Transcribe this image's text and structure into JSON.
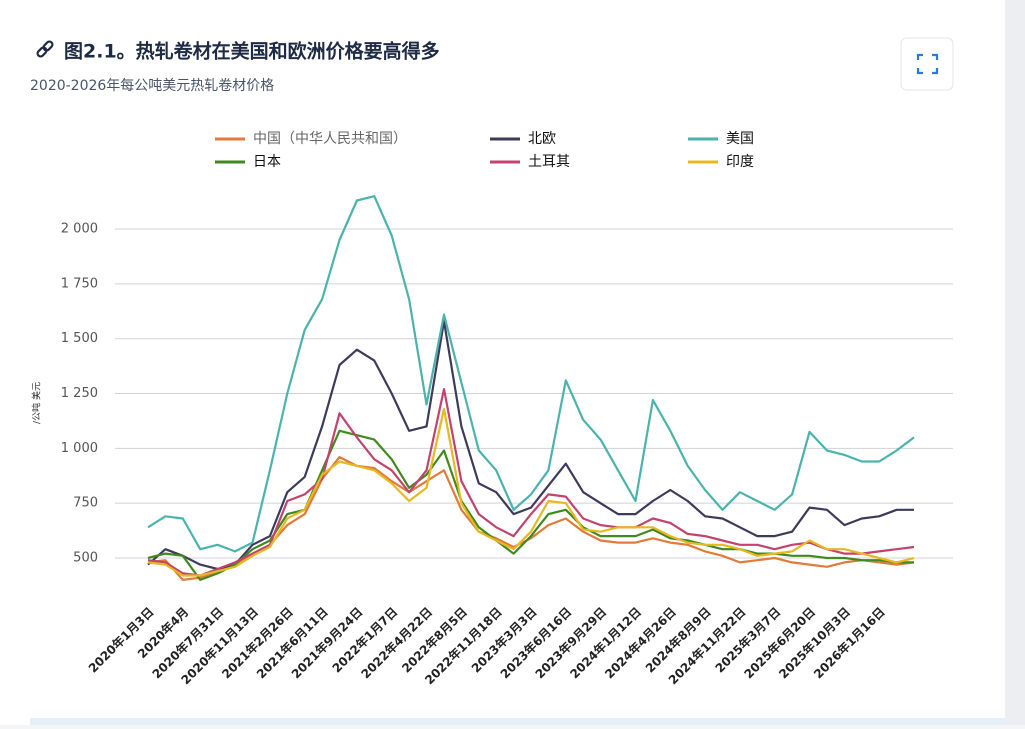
{
  "chart_data": {
    "type": "line",
    "title": "图2.1。热轧卷材在美国和欧洲价格要高得多",
    "subtitle": "2020-2026年每公吨美元热轧卷材价格",
    "y_label": "/公吨 美元",
    "categories": [
      "2020年1月3日",
      null,
      "2020年4月",
      null,
      "2020年7月31日",
      null,
      "2020年11月13日",
      null,
      "2021年2月26日",
      null,
      "2021年6月11日",
      null,
      "2021年9月24日",
      null,
      "2022年1月7日",
      null,
      "2022年4月22日",
      null,
      "2022年8月5日",
      null,
      "2022年11月18日",
      null,
      "2023年3月3日",
      null,
      "2023年6月16日",
      null,
      "2023年9月29日",
      null,
      "2024年1月12日",
      null,
      "2024年4月26日",
      null,
      "2024年8月9日",
      null,
      "2024年11月22日",
      null,
      "2025年3月7日",
      null,
      "2025年6月20日",
      null,
      "2025年10月3日",
      null,
      "2026年1月16日",
      null,
      null
    ],
    "series": [
      {
        "name": "中国（中华人民共和国）",
        "color": "#e07b39",
        "values": [
          480,
          490,
          400,
          410,
          440,
          470,
          510,
          560,
          650,
          700,
          860,
          960,
          920,
          910,
          850,
          800,
          850,
          900,
          720,
          620,
          590,
          550,
          590,
          650,
          680,
          620,
          580,
          570,
          570,
          590,
          570,
          560,
          530,
          510,
          480,
          490,
          500,
          480,
          470,
          460,
          480,
          490,
          480,
          470,
          480
        ]
      },
      {
        "name": "北欧",
        "color": "#3d3b5c",
        "values": [
          470,
          540,
          510,
          470,
          450,
          470,
          560,
          600,
          800,
          870,
          1100,
          1380,
          1450,
          1400,
          1250,
          1080,
          1100,
          1580,
          1100,
          840,
          800,
          700,
          730,
          830,
          930,
          800,
          750,
          700,
          700,
          760,
          810,
          760,
          690,
          680,
          640,
          600,
          600,
          620,
          730,
          720,
          650,
          680,
          690,
          720,
          720
        ]
      },
      {
        "name": "美国",
        "color": "#4bb3ac",
        "values": [
          640,
          690,
          680,
          540,
          560,
          530,
          570,
          900,
          1250,
          1540,
          1680,
          1950,
          2130,
          2150,
          1970,
          1680,
          1200,
          1610,
          1300,
          990,
          900,
          720,
          790,
          900,
          1310,
          1130,
          1040,
          900,
          760,
          1220,
          1080,
          920,
          810,
          720,
          800,
          760,
          720,
          790,
          1075,
          990,
          970,
          940,
          940,
          990,
          1050
        ]
      },
      {
        "name": "日本",
        "color": "#3f8a1f",
        "values": [
          500,
          520,
          510,
          400,
          430,
          470,
          540,
          580,
          700,
          720,
          900,
          1080,
          1060,
          1040,
          950,
          820,
          880,
          990,
          760,
          640,
          580,
          520,
          600,
          700,
          720,
          640,
          600,
          600,
          600,
          630,
          590,
          580,
          560,
          540,
          540,
          520,
          520,
          510,
          510,
          500,
          500,
          490,
          490,
          480,
          480
        ]
      },
      {
        "name": "土耳其",
        "color": "#c2436d",
        "values": [
          490,
          480,
          430,
          420,
          450,
          480,
          520,
          560,
          760,
          790,
          860,
          1160,
          1050,
          950,
          900,
          800,
          900,
          1270,
          850,
          700,
          640,
          600,
          700,
          790,
          780,
          680,
          650,
          640,
          640,
          680,
          660,
          610,
          600,
          580,
          560,
          560,
          540,
          560,
          570,
          540,
          520,
          520,
          530,
          540,
          550
        ]
      },
      {
        "name": "印度",
        "color": "#e8b820",
        "values": [
          480,
          470,
          420,
          420,
          440,
          460,
          510,
          550,
          680,
          720,
          880,
          940,
          920,
          900,
          840,
          760,
          820,
          1180,
          750,
          620,
          580,
          540,
          620,
          760,
          750,
          630,
          620,
          640,
          640,
          640,
          600,
          570,
          560,
          560,
          540,
          510,
          520,
          530,
          580,
          540,
          540,
          520,
          500,
          480,
          500
        ]
      }
    ],
    "ylim": [
      350,
      2100
    ],
    "yticks": [
      {
        "value": 500,
        "label": "500"
      },
      {
        "value": 750,
        "label": "750"
      },
      {
        "value": 1000,
        "label": "1 000"
      },
      {
        "value": 1250,
        "label": "1 250"
      },
      {
        "value": 1500,
        "label": "1 500"
      },
      {
        "value": 1750,
        "label": "1 750"
      },
      {
        "value": 2000,
        "label": "2 000"
      }
    ],
    "grid": true
  }
}
